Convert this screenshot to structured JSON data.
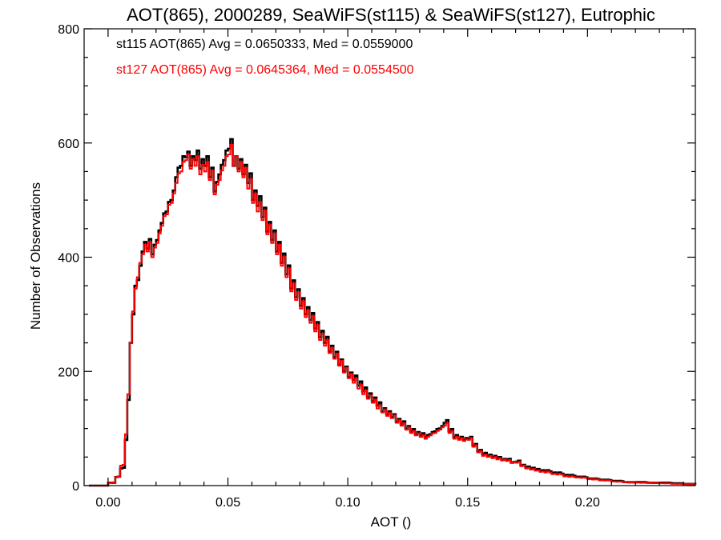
{
  "chart_data": {
    "type": "line",
    "style": "step",
    "title": "AOT(865), 2000289, SeaWiFS(st115) & SeaWiFS(st127), Eutrophic",
    "xlabel": "AOT ()",
    "ylabel": "Number of Observations",
    "xlim": [
      -0.01,
      0.245
    ],
    "ylim": [
      0,
      800
    ],
    "xticks": [
      0.0,
      0.05,
      0.1,
      0.15,
      0.2
    ],
    "xtick_labels": [
      "0.00",
      "0.05",
      "0.10",
      "0.15",
      "0.20"
    ],
    "yticks": [
      0,
      200,
      400,
      600,
      800
    ],
    "ytick_labels": [
      "0",
      "200",
      "400",
      "600",
      "800"
    ],
    "grid": false,
    "bin_width": 0.001,
    "annotations": [
      {
        "text": "st115 AOT(865) Avg = 0.0650333, Med = 0.0559000",
        "color": "#000000"
      },
      {
        "text": "st127 AOT(865) Avg = 0.0645364, Med = 0.0554500",
        "color": "#ff0000"
      }
    ],
    "series": [
      {
        "color": "#000000",
        "x": [
          -0.008,
          0.0,
          0.003,
          0.005,
          0.007,
          0.008,
          0.009,
          0.01,
          0.011,
          0.012,
          0.013,
          0.014,
          0.016,
          0.018,
          0.02,
          0.022,
          0.024,
          0.026,
          0.028,
          0.03,
          0.032,
          0.033,
          0.034,
          0.036,
          0.038,
          0.04,
          0.042,
          0.044,
          0.046,
          0.048,
          0.05,
          0.052,
          0.054,
          0.056,
          0.058,
          0.06,
          0.062,
          0.064,
          0.066,
          0.068,
          0.07,
          0.072,
          0.074,
          0.076,
          0.078,
          0.08,
          0.082,
          0.084,
          0.086,
          0.088,
          0.09,
          0.092,
          0.094,
          0.096,
          0.098,
          0.1,
          0.102,
          0.104,
          0.106,
          0.108,
          0.11,
          0.112,
          0.114,
          0.116,
          0.118,
          0.12,
          0.122,
          0.124,
          0.126,
          0.128,
          0.13,
          0.132,
          0.134,
          0.136,
          0.138,
          0.14,
          0.142,
          0.144,
          0.146,
          0.148,
          0.15,
          0.152,
          0.154,
          0.156,
          0.158,
          0.16,
          0.162,
          0.164,
          0.166,
          0.168,
          0.17,
          0.172,
          0.174,
          0.176,
          0.178,
          0.18,
          0.185,
          0.19,
          0.195,
          0.2,
          0.205,
          0.21,
          0.215,
          0.22,
          0.225,
          0.23,
          0.235,
          0.24,
          0.245
        ],
        "y": [
          0,
          5,
          15,
          30,
          80,
          150,
          250,
          300,
          350,
          360,
          385,
          410,
          415,
          405,
          430,
          460,
          480,
          500,
          540,
          560,
          575,
          585,
          560,
          570,
          555,
          560,
          540,
          515,
          545,
          570,
          590,
          560,
          555,
          545,
          530,
          500,
          490,
          470,
          445,
          430,
          410,
          390,
          370,
          345,
          330,
          315,
          300,
          290,
          275,
          260,
          250,
          235,
          225,
          212,
          200,
          190,
          185,
          175,
          165,
          155,
          148,
          140,
          130,
          125,
          120,
          112,
          108,
          100,
          95,
          90,
          88,
          85,
          90,
          95,
          100,
          110,
          95,
          85,
          82,
          80,
          82,
          70,
          60,
          55,
          52,
          50,
          48,
          45,
          45,
          40,
          42,
          35,
          32,
          30,
          28,
          26,
          22,
          18,
          15,
          12,
          10,
          8,
          6,
          6,
          5,
          5,
          4,
          3,
          2
        ]
      },
      {
        "color": "#ff0000",
        "x": [
          -0.008,
          0.0,
          0.003,
          0.005,
          0.007,
          0.008,
          0.009,
          0.01,
          0.011,
          0.012,
          0.013,
          0.014,
          0.016,
          0.018,
          0.02,
          0.022,
          0.024,
          0.026,
          0.028,
          0.03,
          0.032,
          0.033,
          0.034,
          0.036,
          0.038,
          0.04,
          0.042,
          0.044,
          0.046,
          0.048,
          0.05,
          0.052,
          0.054,
          0.056,
          0.058,
          0.06,
          0.062,
          0.064,
          0.066,
          0.068,
          0.07,
          0.072,
          0.074,
          0.076,
          0.078,
          0.08,
          0.082,
          0.084,
          0.086,
          0.088,
          0.09,
          0.092,
          0.094,
          0.096,
          0.098,
          0.1,
          0.102,
          0.104,
          0.106,
          0.108,
          0.11,
          0.112,
          0.114,
          0.116,
          0.118,
          0.12,
          0.122,
          0.124,
          0.126,
          0.128,
          0.13,
          0.132,
          0.134,
          0.136,
          0.138,
          0.14,
          0.142,
          0.144,
          0.146,
          0.148,
          0.15,
          0.152,
          0.154,
          0.156,
          0.158,
          0.16,
          0.162,
          0.164,
          0.166,
          0.168,
          0.17,
          0.172,
          0.174,
          0.176,
          0.178,
          0.18,
          0.185,
          0.19,
          0.195,
          0.2,
          0.205,
          0.21,
          0.215,
          0.22,
          0.225,
          0.23,
          0.235,
          0.24,
          0.245
        ],
        "y": [
          0,
          5,
          15,
          35,
          90,
          160,
          250,
          305,
          345,
          365,
          390,
          405,
          410,
          400,
          425,
          455,
          475,
          495,
          530,
          550,
          570,
          580,
          555,
          560,
          545,
          550,
          535,
          510,
          535,
          560,
          580,
          560,
          550,
          540,
          520,
          495,
          480,
          465,
          440,
          425,
          405,
          385,
          365,
          340,
          325,
          310,
          295,
          285,
          270,
          255,
          245,
          232,
          222,
          210,
          198,
          188,
          180,
          170,
          160,
          152,
          145,
          135,
          128,
          122,
          118,
          110,
          105,
          98,
          92,
          88,
          85,
          82,
          88,
          92,
          98,
          105,
          92,
          82,
          80,
          78,
          80,
          68,
          58,
          52,
          50,
          48,
          46,
          44,
          43,
          40,
          40,
          34,
          30,
          28,
          26,
          24,
          20,
          16,
          14,
          11,
          9,
          7,
          6,
          5,
          5,
          4,
          3,
          3,
          2
        ]
      }
    ]
  }
}
